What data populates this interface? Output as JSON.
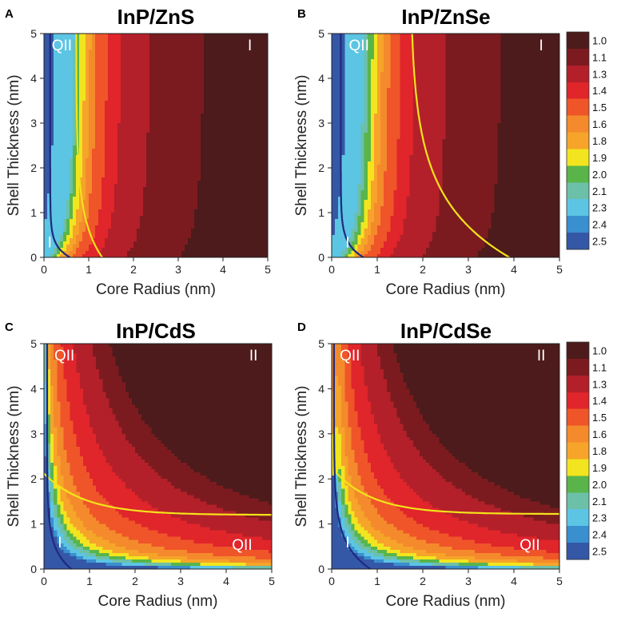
{
  "figure": {
    "x_label": "Core Radius (nm)",
    "y_label": "Shell Thickness (nm)"
  },
  "colorbar": {
    "levels": [
      "1.0",
      "1.1",
      "1.3",
      "1.4",
      "1.5",
      "1.6",
      "1.8",
      "1.9",
      "2.0",
      "2.1",
      "2.3",
      "2.4",
      "2.5"
    ],
    "colors": [
      "#4d1b1b",
      "#7c1b1f",
      "#b3202a",
      "#e0252b",
      "#ef5529",
      "#f48a2c",
      "#f6a42a",
      "#f2e51f",
      "#59b54a",
      "#6cc0a8",
      "#5cc5e4",
      "#3a8fcf",
      "#3457a6"
    ]
  },
  "boundary_colors": {
    "type_I_quasi": "#1f2a80",
    "yellow_line": "#f3e31b"
  },
  "chart_data": [
    {
      "panel": "A",
      "type": "heatmap",
      "title": "InP/ZnS",
      "xlabel": "Core Radius (nm)",
      "ylabel": "Shell Thickness (nm)",
      "xlim": [
        0,
        5
      ],
      "ylim": [
        0,
        5
      ],
      "xticks": [
        "0",
        "1",
        "2",
        "3",
        "4",
        "5"
      ],
      "yticks": [
        "0",
        "1",
        "2",
        "3",
        "4",
        "5"
      ],
      "model": "radial",
      "level_boundaries_core_radius_nm": [
        0.12,
        0.56,
        0.62,
        0.7,
        0.8,
        0.92,
        1.05,
        1.3,
        1.6,
        2.25,
        3.45
      ],
      "yellow_curve": {
        "type": "vertical",
        "x_asym": 0.72,
        "x_at_zero": 1.3,
        "decay": 0.85
      },
      "dark_curve": {
        "type": "vertical",
        "x_asym": 0.14,
        "x_at_zero": 0.58,
        "decay": 0.25
      },
      "region_labels": [
        {
          "text": "QII",
          "x": 0.4,
          "y": 4.75
        },
        {
          "text": "I",
          "x": 4.6,
          "y": 4.75
        },
        {
          "text": "I",
          "x": 0.13,
          "y": 0.35
        }
      ]
    },
    {
      "panel": "B",
      "type": "heatmap",
      "title": "InP/ZnSe",
      "xlabel": "Core Radius (nm)",
      "ylabel": "Shell Thickness (nm)",
      "xlim": [
        0,
        5
      ],
      "ylim": [
        0,
        5
      ],
      "xticks": [
        "0",
        "1",
        "2",
        "3",
        "4",
        "5"
      ],
      "yticks": [
        "0",
        "1",
        "2",
        "3",
        "4",
        "5"
      ],
      "model": "radial",
      "level_boundaries_core_radius_nm": [
        0.2,
        0.6,
        0.68,
        0.78,
        0.88,
        1.0,
        1.15,
        1.4,
        1.7,
        2.4,
        3.6
      ],
      "yellow_curve": {
        "type": "vertical",
        "x_asym": 1.72,
        "x_at_zero": 3.9,
        "decay": 1.3
      },
      "dark_curve": {
        "type": "vertical",
        "x_asym": 0.2,
        "x_at_zero": 0.7,
        "decay": 0.3
      },
      "region_labels": [
        {
          "text": "QII",
          "x": 0.6,
          "y": 4.75
        },
        {
          "text": "I",
          "x": 4.6,
          "y": 4.75
        },
        {
          "text": "I",
          "x": 0.35,
          "y": 0.35
        }
      ]
    },
    {
      "panel": "C",
      "type": "heatmap",
      "title": "InP/CdS",
      "xlabel": "Core Radius (nm)",
      "ylabel": "Shell Thickness (nm)",
      "xlim": [
        0,
        5
      ],
      "ylim": [
        0,
        5
      ],
      "xticks": [
        "0",
        "1",
        "2",
        "3",
        "4",
        "5"
      ],
      "yticks": [
        "0",
        "1",
        "2",
        "3",
        "4",
        "5"
      ],
      "model": "hyperbolic",
      "level_boundaries_product": [
        0.22,
        0.28,
        0.36,
        0.45,
        0.55,
        0.7,
        0.95,
        1.4,
        2.2,
        3.5,
        5.5,
        7.5
      ],
      "yellow_curve": {
        "type": "horizontal",
        "y_asym": 1.2,
        "y_at_zero": 2.12,
        "decay": 0.9
      },
      "dark_curve": {
        "type": "vertical",
        "x_asym": 0.07,
        "x_at_zero": 0.6,
        "decay": 0.45
      },
      "region_labels": [
        {
          "text": "QII",
          "x": 0.45,
          "y": 4.75
        },
        {
          "text": "II",
          "x": 4.6,
          "y": 4.75
        },
        {
          "text": "QII",
          "x": 4.35,
          "y": 0.55
        },
        {
          "text": "I",
          "x": 0.35,
          "y": 0.6
        }
      ]
    },
    {
      "panel": "D",
      "type": "heatmap",
      "title": "InP/CdSe",
      "xlabel": "Core Radius (nm)",
      "ylabel": "Shell Thickness (nm)",
      "xlim": [
        0,
        5
      ],
      "ylim": [
        0,
        5
      ],
      "xticks": [
        "0",
        "1",
        "2",
        "3",
        "4",
        "5"
      ],
      "yticks": [
        "0",
        "1",
        "2",
        "3",
        "4",
        "5"
      ],
      "model": "hyperbolic_tl",
      "level_boundaries_product": [
        0.22,
        0.28,
        0.36,
        0.45,
        0.55,
        0.7,
        0.95,
        1.4,
        2.1,
        3.3,
        5.2,
        7.0
      ],
      "yellow_curve": {
        "type": "horizontal",
        "y_asym": 1.22,
        "y_at_zero": 2.25,
        "decay": 0.85
      },
      "dark_curve": {
        "type": "vertical",
        "x_asym": 0.05,
        "x_at_zero": 0.85,
        "decay": 0.55
      },
      "region_labels": [
        {
          "text": "QII",
          "x": 0.4,
          "y": 4.75
        },
        {
          "text": "II",
          "x": 4.6,
          "y": 4.75
        },
        {
          "text": "QII",
          "x": 4.35,
          "y": 0.55
        },
        {
          "text": "I",
          "x": 0.35,
          "y": 0.6
        }
      ]
    }
  ]
}
